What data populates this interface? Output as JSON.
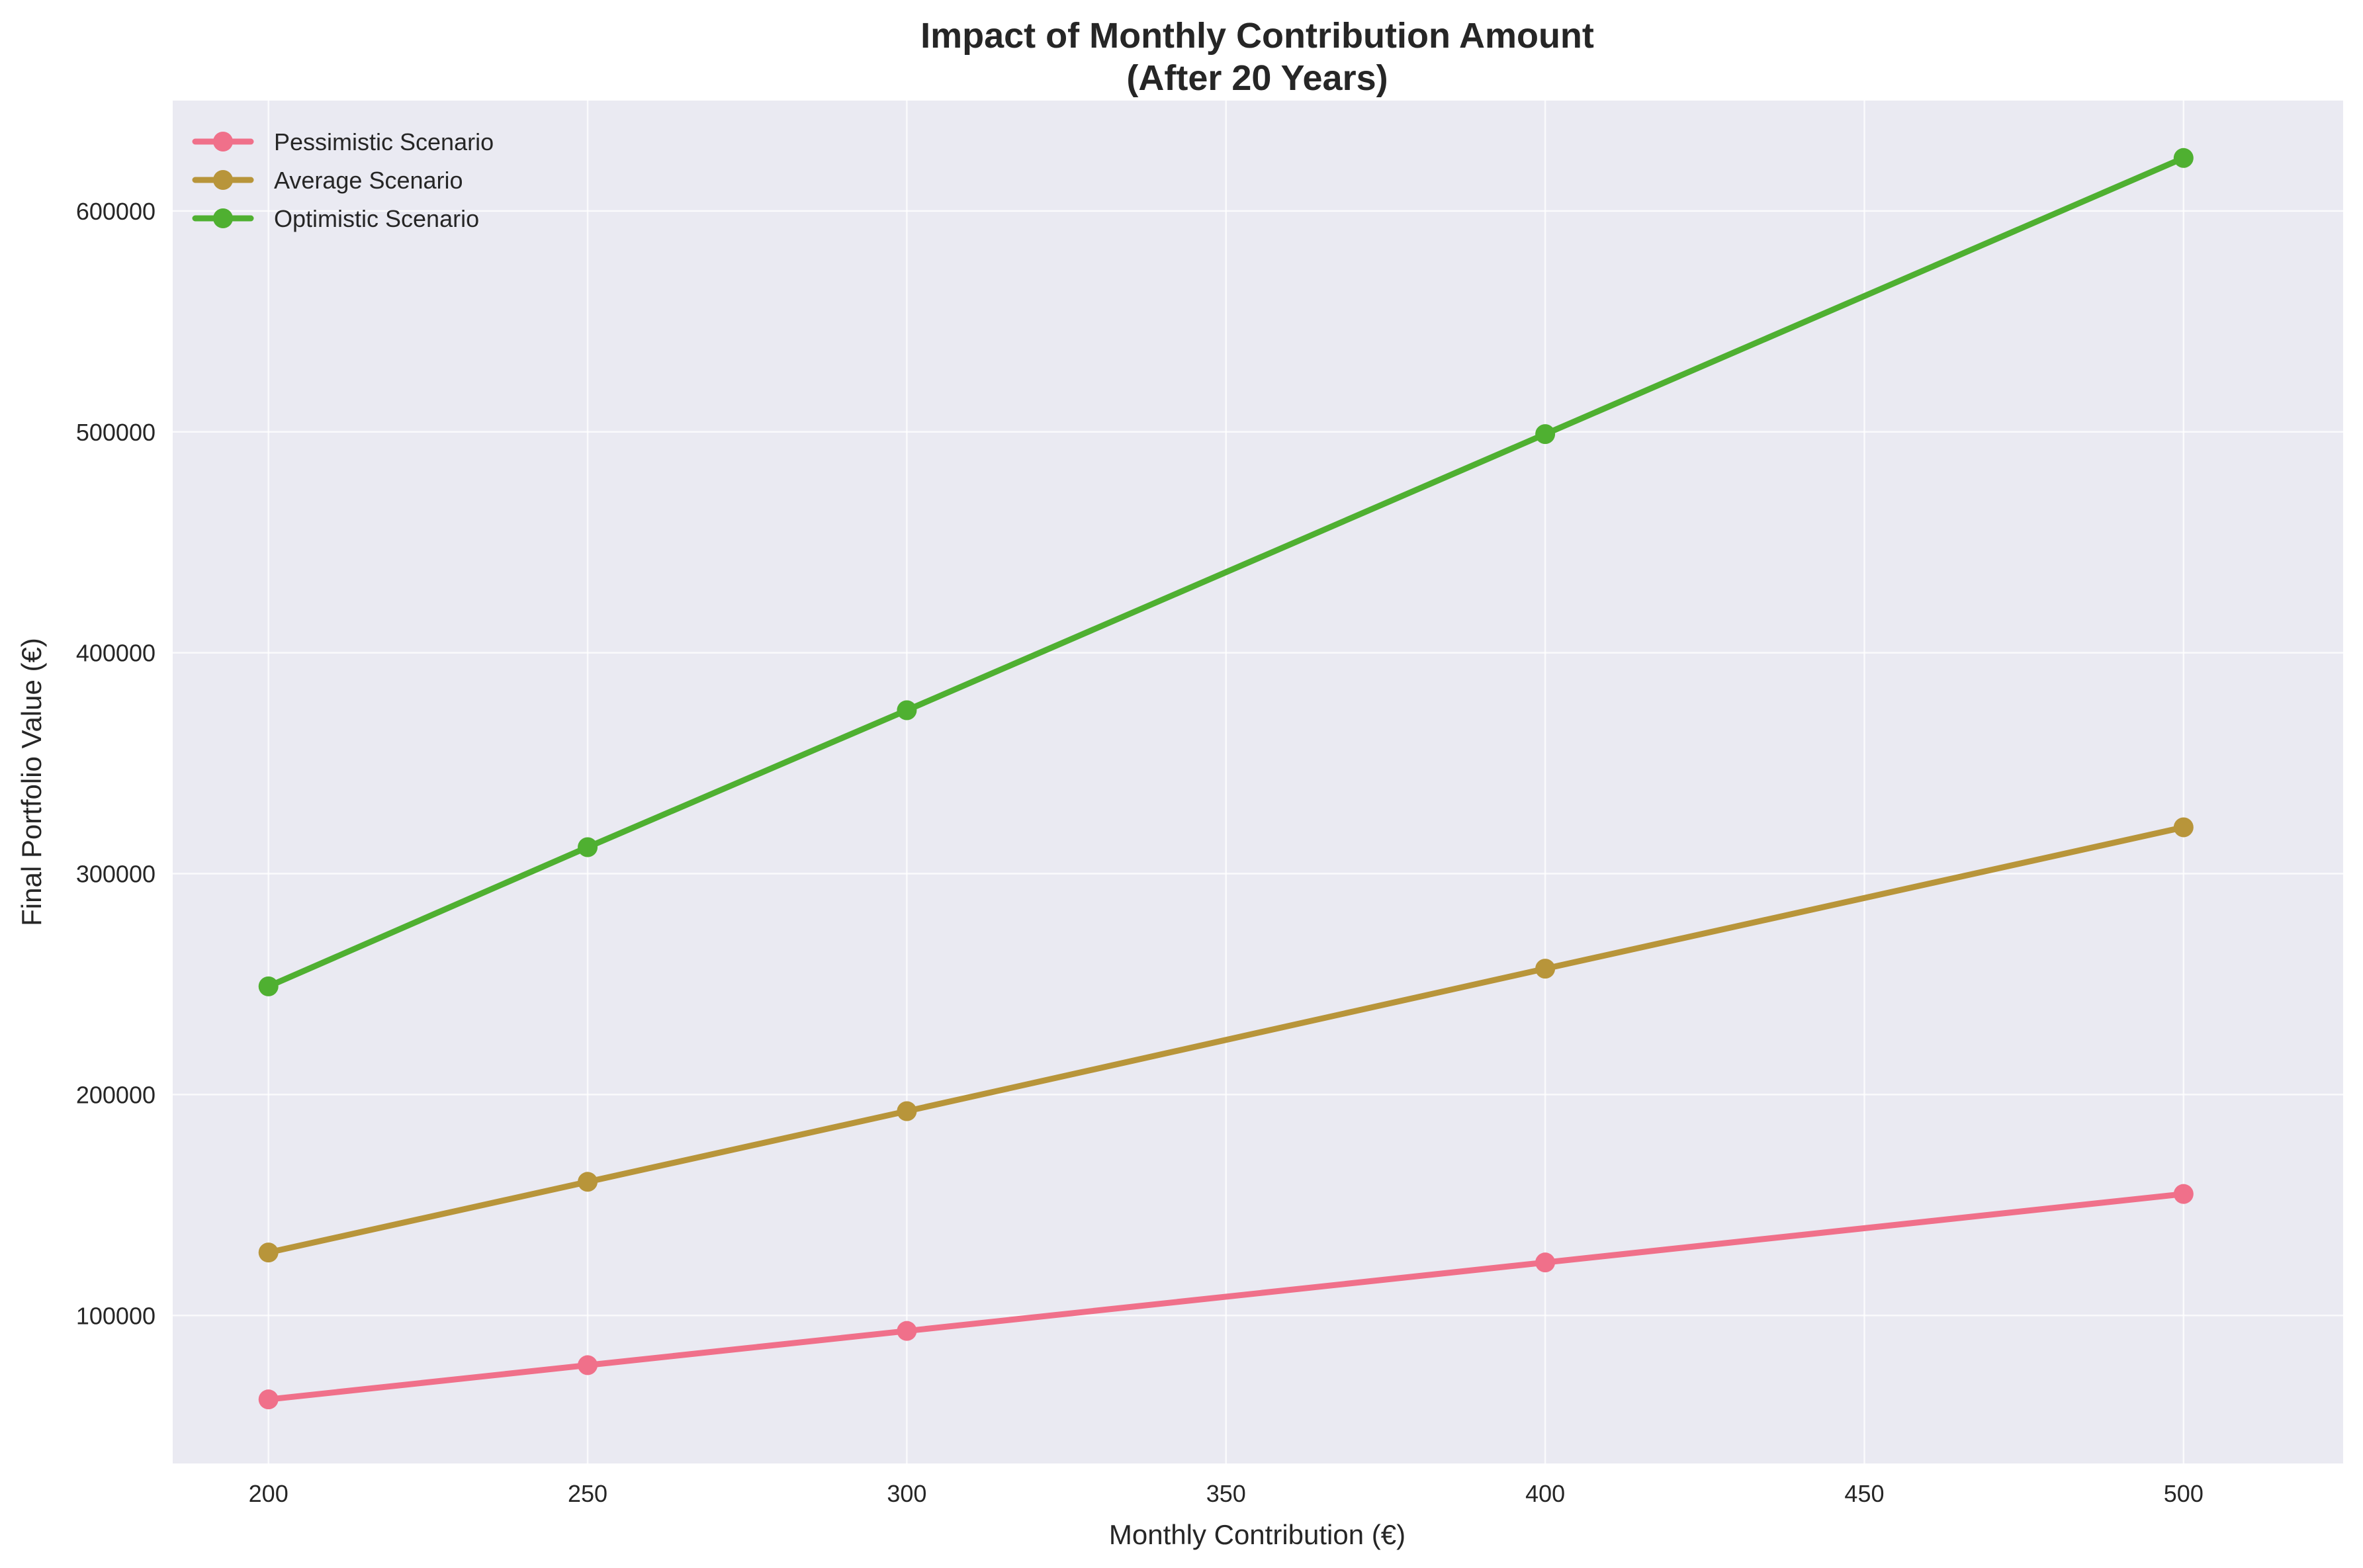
{
  "chart_data": {
    "type": "line",
    "title_line1": "Impact of Monthly Contribution Amount",
    "title_line2": "(After 20 Years)",
    "xlabel": "Monthly Contribution (€)",
    "ylabel": "Final Portfolio Value (€)",
    "x": [
      200,
      250,
      300,
      400,
      500
    ],
    "xlim": [
      185,
      525
    ],
    "ylim": [
      33000,
      650000
    ],
    "xticks": [
      200,
      250,
      300,
      350,
      400,
      450,
      500
    ],
    "yticks": [
      100000,
      200000,
      300000,
      400000,
      500000,
      600000
    ],
    "grid": true,
    "legend_position": "top-left",
    "plot_background": "#eaeaf2",
    "series": [
      {
        "name": "Pessimistic Scenario",
        "color": "#f0708a",
        "values": [
          62000,
          77500,
          93000,
          124000,
          155000
        ]
      },
      {
        "name": "Average Scenario",
        "color": "#b8953a",
        "values": [
          128500,
          160500,
          192500,
          257000,
          321000
        ]
      },
      {
        "name": "Optimistic Scenario",
        "color": "#4fb031",
        "values": [
          249000,
          312000,
          374000,
          499000,
          624000
        ]
      }
    ]
  }
}
